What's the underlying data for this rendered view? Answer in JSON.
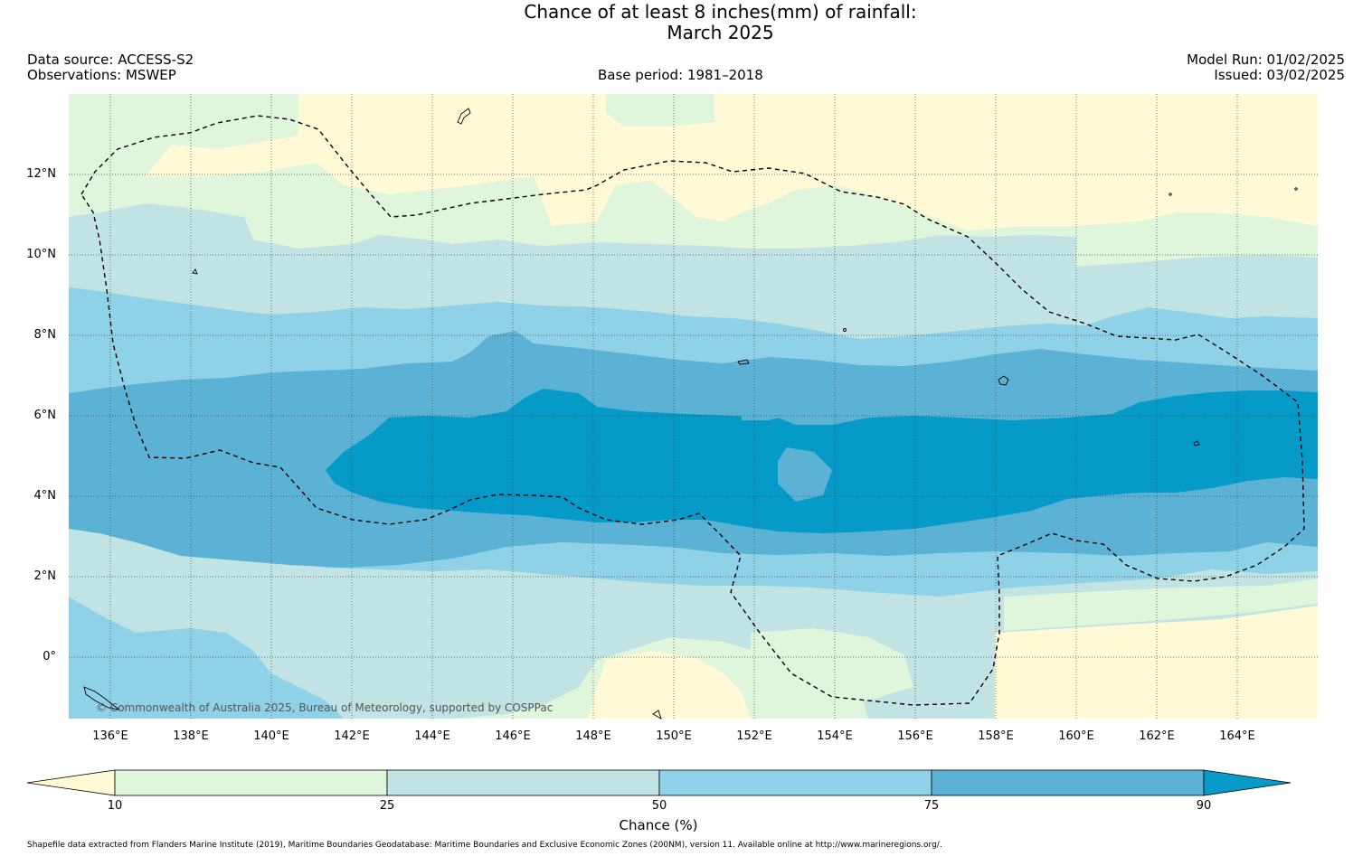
{
  "title": {
    "line1": "Chance of at least 8 inches(mm) of rainfall:",
    "line2": "March 2025"
  },
  "header": {
    "data_source": "Data source: ACCESS-S2",
    "observations": "Observations: MSWEP",
    "base_period": "Base period: 1981–2018",
    "model_run": "Model Run: 01/02/2025",
    "issued": "Issued: 03/02/2025"
  },
  "map": {
    "latitude_labels": [
      "12°N",
      "10°N",
      "8°N",
      "6°N",
      "4°N",
      "2°N",
      "0°"
    ],
    "longitude_labels": [
      "136°E",
      "138°E",
      "140°E",
      "142°E",
      "144°E",
      "146°E",
      "148°E",
      "150°E",
      "152°E",
      "154°E",
      "156°E",
      "158°E",
      "160°E",
      "162°E",
      "164°E"
    ],
    "copyright": "© Commonwealth of Australia 2025, Bureau of Meteorology, supported by COSPPac"
  },
  "colorbar": {
    "label": "Chance (%)",
    "ticks": [
      "10",
      "25",
      "50",
      "75",
      "90"
    ],
    "colors": [
      "#fff9d6",
      "#dff5dc",
      "#c2e3e4",
      "#8fd2e8",
      "#5bb2d4",
      "#069ac8"
    ]
  },
  "footer": {
    "text": "Shapefile data extracted from Flanders Marine Institute (2019), Maritime Boundaries Geodatabase: Maritime Boundaries and Exclusive Economic Zones (200NM), version 11. Available online at http://www.marineregions.org/."
  }
}
